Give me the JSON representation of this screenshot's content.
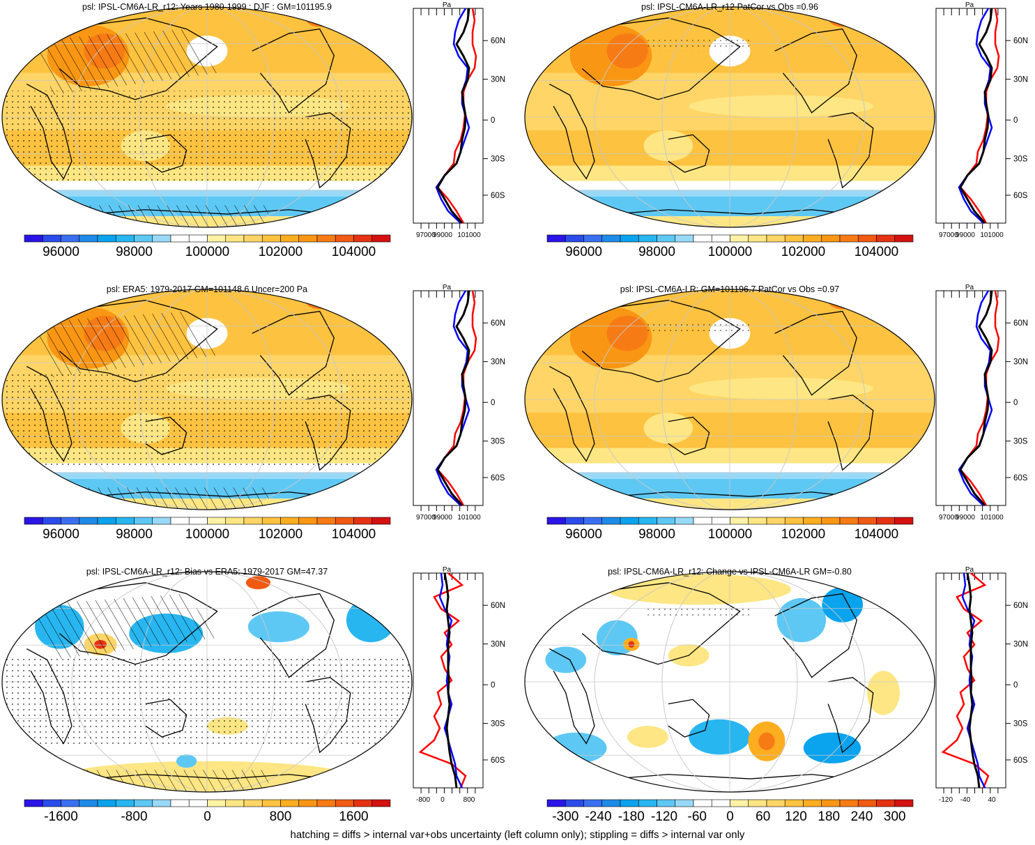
{
  "colors": {
    "scale": [
      "#2a14e6",
      "#2b4bea",
      "#3a6ff0",
      "#1f8be8",
      "#0aa3ee",
      "#28b6f0",
      "#5ec8f4",
      "#99d9f8",
      "#ffffff",
      "#ffffff",
      "#fef2a6",
      "#fde683",
      "#fed566",
      "#fdc240",
      "#fcae20",
      "#f99613",
      "#f77b14",
      "#f05a12",
      "#e53213",
      "#d41111"
    ],
    "obs_line": "#000000",
    "north_line": "#ff0000",
    "south_line": "#0000ff"
  },
  "panels": [
    {
      "title": "psl: IPSL-CM6A-LR_r12: Years 1980-1999 : DJF : GM=101195.9",
      "type": "mean",
      "hatch": true,
      "colorbar_labels": [
        "96000",
        "98000",
        "100000",
        "102000",
        "104000"
      ],
      "profile_x_labels": [
        "97000",
        "99000",
        "101000"
      ],
      "profile_unit": "Pa"
    },
    {
      "title": "psl: IPSL-CM6A-LR_r12 PatCor vs Obs =0.96",
      "type": "mean",
      "hatch": false,
      "colorbar_labels": [
        "96000",
        "98000",
        "100000",
        "102000",
        "104000"
      ],
      "profile_x_labels": [
        "97000",
        "99000",
        "101000"
      ],
      "profile_unit": "Pa"
    },
    {
      "title": "psl: ERA5: 1979-2017 GM=101148.6 Uncer=200 Pa",
      "type": "mean",
      "hatch": true,
      "colorbar_labels": [
        "96000",
        "98000",
        "100000",
        "102000",
        "104000"
      ],
      "profile_x_labels": [
        "97000",
        "99000",
        "101000"
      ],
      "profile_unit": "Pa"
    },
    {
      "title": "psl: IPSL-CM6A-LR: GM=101196.7 PatCor vs Obs =0.97",
      "type": "mean",
      "hatch": false,
      "colorbar_labels": [
        "96000",
        "98000",
        "100000",
        "102000",
        "104000"
      ],
      "profile_x_labels": [
        "97000",
        "99000",
        "101000"
      ],
      "profile_unit": "Pa"
    },
    {
      "title": "psl: IPSL-CM6A-LR_r12: Bias vs ERA5: 1979-2017 GM=47.37",
      "type": "bias",
      "hatch": true,
      "colorbar_labels": [
        "-1600",
        "-800",
        "0",
        "800",
        "1600"
      ],
      "profile_x_labels": [
        "-800",
        "0",
        "800"
      ],
      "profile_unit": "Pa"
    },
    {
      "title": "psl: IPSL-CM6A-LR_r12: Change vs IPSL-CM6A-LR GM=-0.80",
      "type": "change",
      "hatch": false,
      "colorbar_labels": [
        "-300",
        "-240",
        "-180",
        "-120",
        "-60",
        "0",
        "60",
        "120",
        "180",
        "240",
        "300"
      ],
      "profile_x_labels": [
        "-120",
        "-40",
        "40"
      ],
      "profile_unit": "Pa"
    }
  ],
  "latitude_labels": [
    "60N",
    "30N",
    "0",
    "30S",
    "60S"
  ],
  "footnote": "hatching = diffs > internal var+obs uncertainty (left column only); stippling = diffs > internal var only"
}
